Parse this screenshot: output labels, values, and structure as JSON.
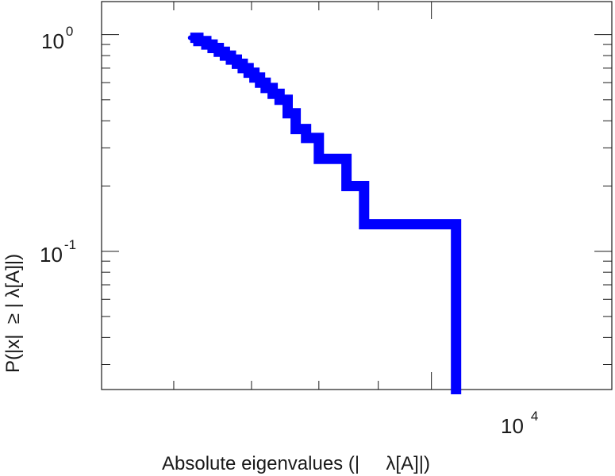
{
  "chart_data": {
    "type": "line",
    "style": "step",
    "title": "",
    "xlabel": "Absolute eigenvalues (|     λ[A]|)",
    "ylabel": "P(|x|  ≥ | λ[A]|)",
    "xscale": "log",
    "yscale": "log",
    "xlim": [
      5200,
      14300
    ],
    "ylim": [
      0.023,
      1.42
    ],
    "grid": false,
    "legend": "none",
    "color": "#0000ff",
    "x_ticks": [
      {
        "base": "10",
        "exp": "4",
        "value": 10000
      }
    ],
    "y_ticks": [
      {
        "base": "10",
        "exp": "0",
        "value": 1
      },
      {
        "base": "10",
        "exp": "-1",
        "value": 0.1
      }
    ],
    "series": [
      {
        "x": [
          6200,
          6300,
          6400,
          6480,
          6560,
          6640,
          6720,
          6800,
          6880,
          6960,
          7040,
          7120,
          7200,
          7300,
          7400,
          7520,
          7640,
          7800,
          8000,
          8450,
          8750,
          10500,
          10500
        ],
        "y": [
          0.967,
          0.933,
          0.9,
          0.867,
          0.833,
          0.8,
          0.767,
          0.733,
          0.7,
          0.667,
          0.633,
          0.6,
          0.567,
          0.533,
          0.5,
          0.4333,
          0.3667,
          0.3333,
          0.2667,
          0.2,
          0.1333,
          0.0667,
          0.0333
        ]
      }
    ]
  }
}
